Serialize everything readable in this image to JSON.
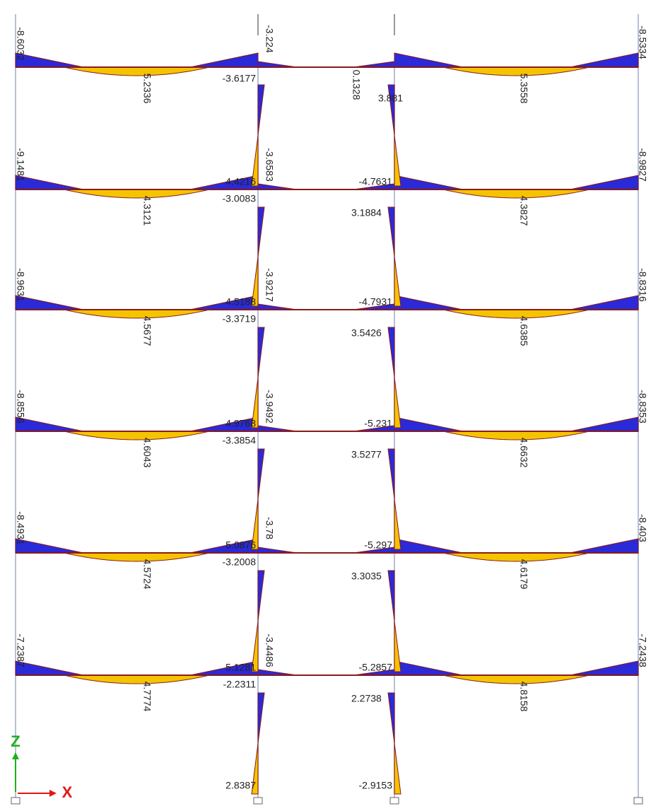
{
  "roof": [
    "-8.6032",
    "-3.224",
    "-8.5334",
    "-3.6177",
    "5.2336",
    "0.1328",
    "3.881",
    "5.3558"
  ],
  "floors": [
    [
      "-9.1481",
      "4.4216",
      "-3.6583",
      "-4.7631",
      "-8.9827",
      "-3.0083",
      "4.3121",
      "3.1884",
      "4.3827"
    ],
    [
      "-8.9631",
      "4.5188",
      "-3.9217",
      "-4.7931",
      "-8.8316",
      "-3.3719",
      "4.5677",
      "3.5426",
      "4.6385"
    ],
    [
      "-8.8556",
      "4.9768",
      "-3.9492",
      "-5.231",
      "-8.8353",
      "-3.3854",
      "4.6043",
      "3.5277",
      "4.6632"
    ],
    [
      "-8.4931",
      "5.0876",
      "-3.78",
      "-5.297",
      "-8.403",
      "-3.2008",
      "4.5724",
      "3.3035",
      "4.6179"
    ],
    [
      "-7.2387",
      "5.1281",
      "-3.4486",
      "-5.2857",
      "-7.2438",
      "-2.2311",
      "4.7774",
      "2.2738",
      "4.8158"
    ]
  ],
  "base": [
    "2.8387",
    "-2.9153"
  ],
  "axes": {
    "z": "Z",
    "x": "X"
  }
}
